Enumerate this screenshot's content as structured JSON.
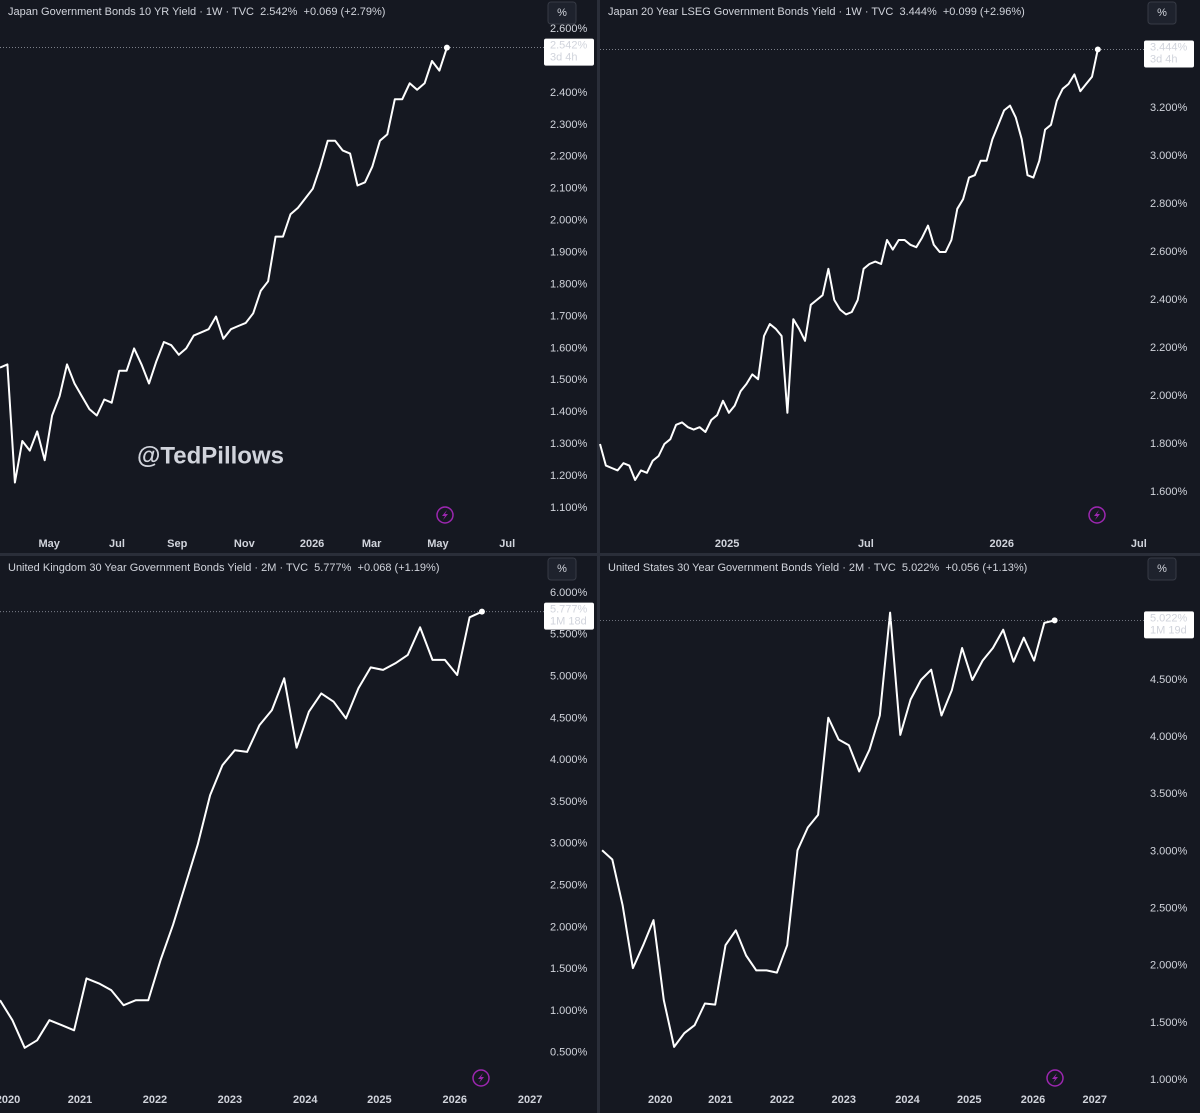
{
  "chart_data": [
    {
      "type": "line",
      "title": "Japan Government Bonds 10 YR Yield · 1W · TVC  2.542%  +0.069 (+2.79%)",
      "unit_button": "%",
      "annotation": "@TedPillows",
      "last_label": "2.542%",
      "countdown": "3d 4h",
      "color": "#ffffff",
      "values": [
        1.54,
        1.55,
        1.18,
        1.31,
        1.28,
        1.34,
        1.25,
        1.39,
        1.45,
        1.55,
        1.49,
        1.45,
        1.41,
        1.39,
        1.44,
        1.43,
        1.53,
        1.53,
        1.6,
        1.55,
        1.49,
        1.56,
        1.62,
        1.61,
        1.58,
        1.6,
        1.64,
        1.65,
        1.66,
        1.7,
        1.63,
        1.66,
        1.67,
        1.68,
        1.71,
        1.78,
        1.81,
        1.95,
        1.95,
        2.02,
        2.04,
        2.07,
        2.1,
        2.17,
        2.25,
        2.25,
        2.22,
        2.21,
        2.11,
        2.12,
        2.17,
        2.25,
        2.27,
        2.38,
        2.38,
        2.43,
        2.41,
        2.43,
        2.5,
        2.47,
        2.542
      ],
      "xlim": [
        0,
        72.5
      ],
      "xticks": [
        {
          "value": 6.6,
          "label": "May"
        },
        {
          "value": 15.7,
          "label": "Jul"
        },
        {
          "value": 23.8,
          "label": "Sep"
        },
        {
          "value": 32.8,
          "label": "Nov"
        },
        {
          "value": 41.9,
          "label": "2026"
        },
        {
          "value": 49.9,
          "label": "Mar"
        },
        {
          "value": 58.8,
          "label": "May"
        },
        {
          "value": 68.1,
          "label": "Jul"
        }
      ],
      "ylim": [
        1.047,
        2.691
      ],
      "yticks": [
        {
          "value": 1.1,
          "label": "1.100%"
        },
        {
          "value": 1.2,
          "label": "1.200%"
        },
        {
          "value": 1.3,
          "label": "1.300%"
        },
        {
          "value": 1.4,
          "label": "1.400%"
        },
        {
          "value": 1.5,
          "label": "1.500%"
        },
        {
          "value": 1.6,
          "label": "1.600%"
        },
        {
          "value": 1.7,
          "label": "1.700%"
        },
        {
          "value": 1.8,
          "label": "1.800%"
        },
        {
          "value": 1.9,
          "label": "1.900%"
        },
        {
          "value": 2.0,
          "label": "2.000%"
        },
        {
          "value": 2.1,
          "label": "2.100%"
        },
        {
          "value": 2.2,
          "label": "2.200%"
        },
        {
          "value": 2.3,
          "label": "2.300%"
        },
        {
          "value": 2.4,
          "label": "2.400%"
        },
        {
          "value": 2.6,
          "label": "2.600%"
        }
      ]
    },
    {
      "type": "line",
      "title": "Japan 20 Year LSEG Government Bonds Yield · 1W · TVC  3.444%  +0.099 (+2.96%)",
      "unit_button": "%",
      "last_label": "3.444%",
      "countdown": "3d 4h",
      "color": "#ffffff",
      "values": [
        1.8,
        1.71,
        1.7,
        1.69,
        1.72,
        1.71,
        1.65,
        1.69,
        1.68,
        1.73,
        1.75,
        1.8,
        1.82,
        1.88,
        1.89,
        1.87,
        1.86,
        1.87,
        1.85,
        1.9,
        1.92,
        1.98,
        1.93,
        1.96,
        2.02,
        2.05,
        2.09,
        2.07,
        2.25,
        2.3,
        2.28,
        2.25,
        1.93,
        2.32,
        2.28,
        2.23,
        2.38,
        2.4,
        2.42,
        2.53,
        2.4,
        2.36,
        2.34,
        2.35,
        2.4,
        2.53,
        2.55,
        2.56,
        2.55,
        2.65,
        2.61,
        2.65,
        2.65,
        2.63,
        2.62,
        2.66,
        2.71,
        2.63,
        2.6,
        2.6,
        2.65,
        2.78,
        2.82,
        2.91,
        2.92,
        2.98,
        2.98,
        3.07,
        3.13,
        3.19,
        3.21,
        3.16,
        3.07,
        2.92,
        2.91,
        2.98,
        3.11,
        3.13,
        3.23,
        3.28,
        3.3,
        3.34,
        3.27,
        3.3,
        3.33,
        3.444
      ],
      "xlim": [
        0,
        92.2
      ],
      "xticks": [
        {
          "value": 21.7,
          "label": "2025"
        },
        {
          "value": 45.4,
          "label": "Jul"
        },
        {
          "value": 68.6,
          "label": "2026"
        },
        {
          "value": 92.0,
          "label": "Jul"
        }
      ],
      "ylim": [
        1.4625,
        3.65
      ],
      "yticks": [
        {
          "value": 1.6,
          "label": "1.600%"
        },
        {
          "value": 1.8,
          "label": "1.800%"
        },
        {
          "value": 2.0,
          "label": "2.000%"
        },
        {
          "value": 2.2,
          "label": "2.200%"
        },
        {
          "value": 2.4,
          "label": "2.400%"
        },
        {
          "value": 2.6,
          "label": "2.600%"
        },
        {
          "value": 2.8,
          "label": "2.800%"
        },
        {
          "value": 3.0,
          "label": "3.000%"
        },
        {
          "value": 3.2,
          "label": "3.200%"
        }
      ]
    },
    {
      "type": "line",
      "title": "United Kingdom 30 Year Government Bonds Yield · 2M · TVC  5.777%  +0.068 (+1.19%)",
      "unit_button": "%",
      "last_label": "5.777%",
      "countdown": "1M 18d",
      "color": "#ffffff",
      "values": [
        1.13,
        0.89,
        0.56,
        0.65,
        0.89,
        0.83,
        0.77,
        1.39,
        1.33,
        1.25,
        1.07,
        1.13,
        1.13,
        1.61,
        2.03,
        2.51,
        2.99,
        3.58,
        3.94,
        4.12,
        4.1,
        4.42,
        4.6,
        4.98,
        4.15,
        4.58,
        4.8,
        4.7,
        4.5,
        4.86,
        5.11,
        5.08,
        5.16,
        5.26,
        5.59,
        5.2,
        5.2,
        5.02,
        5.71,
        5.777
      ],
      "xlim": [
        0,
        43.7
      ],
      "xticks": [
        {
          "value": 0.65,
          "label": "2020"
        },
        {
          "value": 6.47,
          "label": "2021"
        },
        {
          "value": 12.54,
          "label": "2022"
        },
        {
          "value": 18.6,
          "label": "2023"
        },
        {
          "value": 24.7,
          "label": "2024"
        },
        {
          "value": 30.7,
          "label": "2025"
        },
        {
          "value": 36.8,
          "label": "2026"
        },
        {
          "value": 42.9,
          "label": "2027"
        }
      ],
      "ylim": [
        0.163,
        6.443
      ],
      "yticks": [
        {
          "value": 0.5,
          "label": "0.500%"
        },
        {
          "value": 1.0,
          "label": "1.000%"
        },
        {
          "value": 1.5,
          "label": "1.500%"
        },
        {
          "value": 2.0,
          "label": "2.000%"
        },
        {
          "value": 2.5,
          "label": "2.500%"
        },
        {
          "value": 3.0,
          "label": "3.000%"
        },
        {
          "value": 3.5,
          "label": "3.500%"
        },
        {
          "value": 4.0,
          "label": "4.000%"
        },
        {
          "value": 4.5,
          "label": "4.500%"
        },
        {
          "value": 5.0,
          "label": "5.000%"
        },
        {
          "value": 5.5,
          "label": "5.500%"
        },
        {
          "value": 6.0,
          "label": "6.000%"
        }
      ]
    },
    {
      "type": "line",
      "title": "United States 30 Year Government Bonds Yield · 2M · TVC  5.022%  +0.056 (+1.13%)",
      "unit_button": "%",
      "last_label": "5.022%",
      "countdown": "1M 19d",
      "color": "#ffffff",
      "values": [
        3.01,
        2.93,
        2.53,
        1.98,
        2.18,
        2.4,
        1.7,
        1.29,
        1.41,
        1.48,
        1.67,
        1.66,
        2.18,
        2.31,
        2.09,
        1.96,
        1.96,
        1.94,
        2.18,
        3.01,
        3.21,
        3.32,
        4.17,
        3.98,
        3.93,
        3.7,
        3.89,
        4.19,
        5.09,
        4.02,
        4.33,
        4.5,
        4.59,
        4.19,
        4.41,
        4.78,
        4.5,
        4.67,
        4.78,
        4.94,
        4.66,
        4.87,
        4.67,
        5.0,
        5.022
      ],
      "xlim": [
        -0.2,
        52.3
      ],
      "xticks": [
        {
          "value": 5.66,
          "label": "2020"
        },
        {
          "value": 11.5,
          "label": "2021"
        },
        {
          "value": 17.5,
          "label": "2022"
        },
        {
          "value": 23.5,
          "label": "2023"
        },
        {
          "value": 29.7,
          "label": "2024"
        },
        {
          "value": 35.7,
          "label": "2025"
        },
        {
          "value": 41.9,
          "label": "2026"
        },
        {
          "value": 47.9,
          "label": "2027"
        }
      ],
      "ylim": [
        0.992,
        5.585
      ],
      "yticks": [
        {
          "value": 1.0,
          "label": "1.000%"
        },
        {
          "value": 1.5,
          "label": "1.500%"
        },
        {
          "value": 2.0,
          "label": "2.000%"
        },
        {
          "value": 2.5,
          "label": "2.500%"
        },
        {
          "value": 3.0,
          "label": "3.000%"
        },
        {
          "value": 3.5,
          "label": "3.500%"
        },
        {
          "value": 4.0,
          "label": "4.000%"
        },
        {
          "value": 4.5,
          "label": "4.500%"
        }
      ]
    }
  ]
}
